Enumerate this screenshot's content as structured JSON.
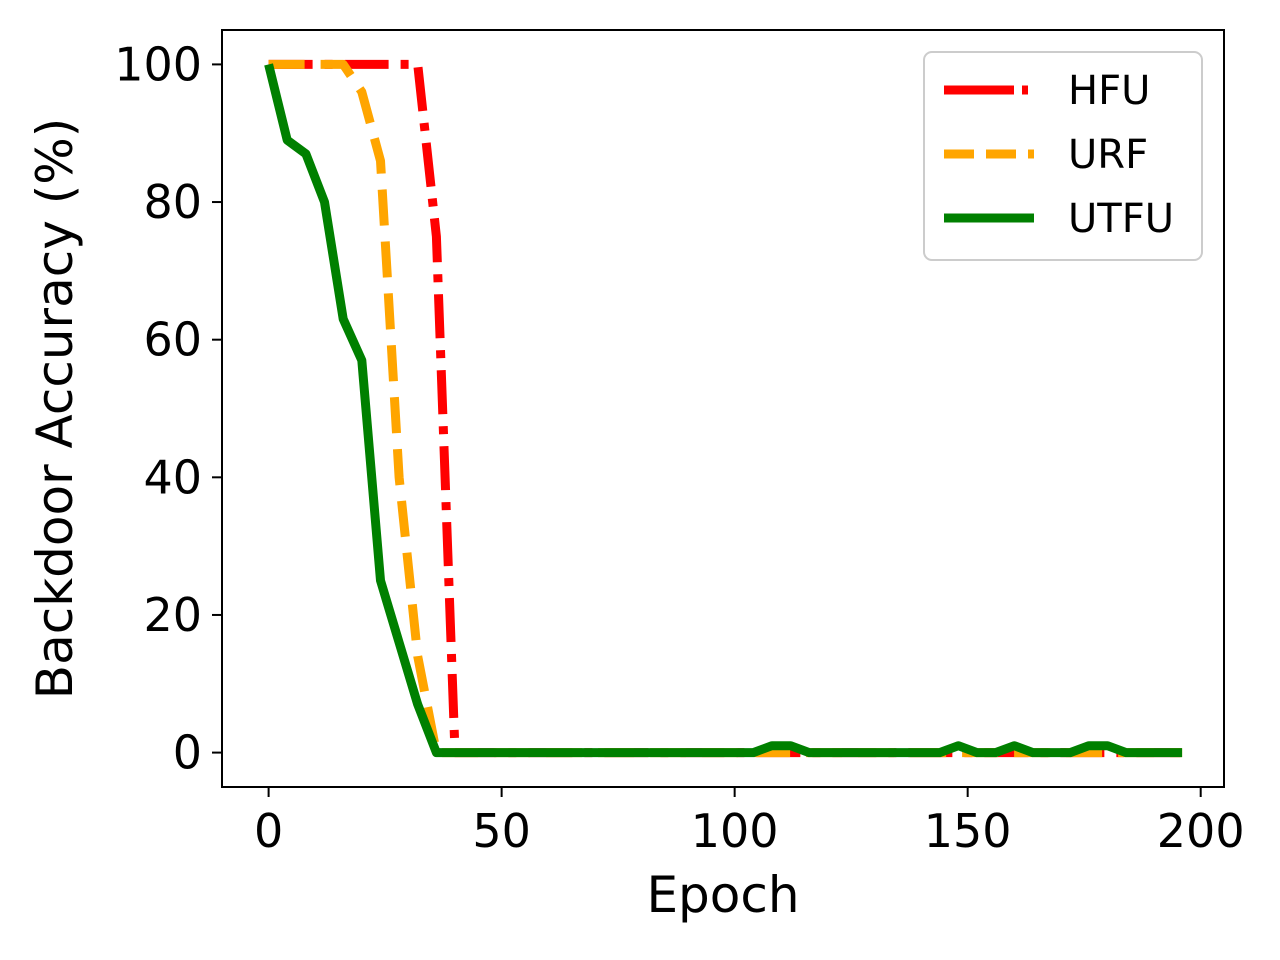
{
  "chart_data": {
    "type": "line",
    "title": "",
    "xlabel": "Epoch",
    "ylabel": "Backdoor Accuracy (%)",
    "xlim": [
      -10,
      205
    ],
    "ylim": [
      -5,
      105
    ],
    "xticks": [
      0,
      50,
      100,
      150,
      200
    ],
    "yticks": [
      0,
      20,
      40,
      60,
      80,
      100
    ],
    "grid": false,
    "legend_position": "top-right",
    "series": [
      {
        "name": "HFU",
        "color": "#ff0000",
        "style": "dashdot",
        "x": [
          0,
          4,
          8,
          12,
          16,
          20,
          24,
          28,
          32,
          36,
          40,
          44,
          48,
          52,
          56,
          60,
          64,
          68,
          72,
          76,
          80,
          84,
          88,
          92,
          96,
          100,
          104,
          108,
          112,
          116,
          120,
          124,
          128,
          132,
          136,
          140,
          144,
          148,
          152,
          156,
          160,
          164,
          168,
          172,
          176,
          180,
          184,
          188,
          192,
          196
        ],
        "y": [
          100,
          100,
          100,
          100,
          100,
          100,
          100,
          100,
          100,
          75,
          0,
          0,
          0,
          0,
          0,
          0,
          0,
          0,
          0,
          0,
          0,
          0,
          0,
          0,
          0,
          0,
          0,
          0,
          0,
          0,
          0,
          0,
          0,
          0,
          0,
          0,
          0,
          0,
          0,
          0,
          0,
          0,
          0,
          0,
          0,
          0,
          0,
          0,
          0,
          0
        ]
      },
      {
        "name": "URF",
        "color": "#ffa500",
        "style": "dashed",
        "x": [
          0,
          4,
          8,
          12,
          16,
          20,
          24,
          28,
          32,
          36,
          40,
          44,
          48,
          52,
          56,
          60,
          64,
          68,
          72,
          76,
          80,
          84,
          88,
          92,
          96,
          100,
          104,
          108,
          112,
          116,
          120,
          124,
          128,
          132,
          136,
          140,
          144,
          148,
          152,
          156,
          160,
          164,
          168,
          172,
          176,
          180,
          184,
          188,
          192,
          196
        ],
        "y": [
          100,
          100,
          100,
          100,
          100,
          96,
          86,
          40,
          14,
          0,
          0,
          0,
          0,
          0,
          0,
          0,
          0,
          0,
          0,
          0,
          0,
          0,
          0,
          0,
          0,
          0,
          0,
          0,
          0,
          0,
          0,
          0,
          0,
          0,
          0,
          0,
          0,
          0,
          0,
          0,
          0,
          0,
          0,
          0,
          0,
          0,
          0,
          0,
          0,
          0
        ]
      },
      {
        "name": "UTFU",
        "color": "#008000",
        "style": "solid",
        "x": [
          0,
          4,
          8,
          12,
          16,
          20,
          24,
          28,
          32,
          36,
          40,
          44,
          48,
          52,
          56,
          60,
          64,
          68,
          72,
          76,
          80,
          84,
          88,
          92,
          96,
          100,
          104,
          108,
          112,
          116,
          120,
          124,
          128,
          132,
          136,
          140,
          144,
          148,
          152,
          156,
          160,
          164,
          168,
          172,
          176,
          180,
          184,
          188,
          192,
          196
        ],
        "y": [
          100,
          89,
          87,
          80,
          63,
          57,
          25,
          16,
          7,
          0,
          0,
          0,
          0,
          0,
          0,
          0,
          0,
          0,
          0,
          0,
          0,
          0,
          0,
          0,
          0,
          0,
          0,
          1,
          1,
          0,
          0,
          0,
          0,
          0,
          0,
          0,
          0,
          1,
          0,
          0,
          1,
          0,
          0,
          0,
          1,
          1,
          0,
          0,
          0,
          0
        ]
      }
    ]
  }
}
